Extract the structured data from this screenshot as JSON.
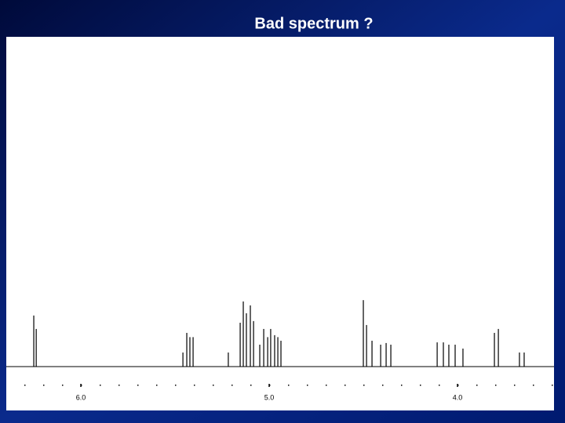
{
  "chart_data": {
    "type": "stem",
    "title": "Bad spectrum ?",
    "color": "#000000",
    "x": [
      6.25,
      6.237,
      5.458,
      5.4375,
      5.421,
      5.404,
      5.217,
      5.154,
      5.1375,
      5.121,
      5.1,
      5.083,
      5.05,
      5.029,
      5.008,
      4.992,
      4.971,
      4.954,
      4.9375,
      4.5,
      4.483,
      4.454,
      4.408,
      4.379,
      4.354,
      4.108,
      4.075,
      4.046,
      4.0125,
      3.971,
      3.804,
      3.783,
      3.671,
      3.646
    ],
    "values": [
      15.6,
      11.5,
      4.3,
      10.3,
      9,
      9,
      4.3,
      13.4,
      19.9,
      16.3,
      18.7,
      13.9,
      6.7,
      11.5,
      9,
      11.5,
      9.6,
      9,
      7.9,
      20.3,
      12.7,
      7.9,
      6.7,
      7.2,
      6.7,
      7.4,
      7.4,
      6.7,
      6.7,
      5.5,
      10.3,
      11.5,
      4.3,
      4.3
    ],
    "xlim": [
      6.396,
      3.4875
    ],
    "xticks": [
      {
        "value": 6,
        "label": "6.0"
      },
      {
        "value": 5,
        "label": "5.0"
      },
      {
        "value": 4,
        "label": "4.0"
      }
    ],
    "ylim": [
      0,
      100
    ]
  }
}
